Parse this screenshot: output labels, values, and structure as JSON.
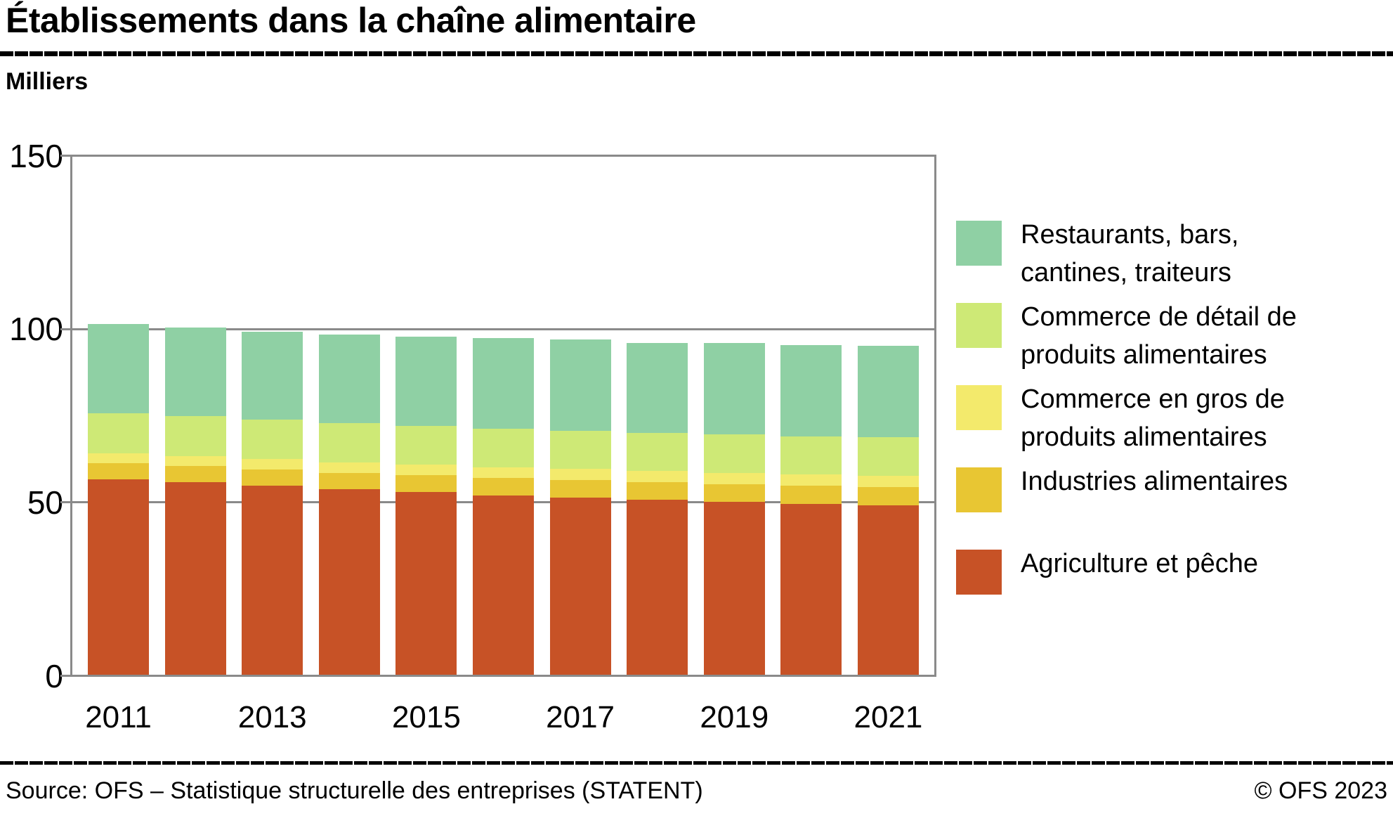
{
  "header": {
    "title": "Établissements dans la chaîne alimentaire"
  },
  "chart": {
    "unit_label": "Milliers"
  },
  "chart_data": {
    "type": "bar",
    "stacked": true,
    "title": "Établissements dans la chaîne alimentaire",
    "ylabel": "Milliers",
    "xlabel": "",
    "unit": "thousands of establishments",
    "ylim": [
      0,
      150
    ],
    "y_ticks": [
      150,
      100,
      50,
      0
    ],
    "grid": "horizontal",
    "legend_position": "right",
    "categories": [
      2011,
      2012,
      2013,
      2014,
      2015,
      2016,
      2017,
      2018,
      2019,
      2020,
      2021
    ],
    "x_tick_labels": [
      "2011",
      "2013",
      "2015",
      "2017",
      "2019",
      "2021"
    ],
    "series": [
      {
        "name": "Agriculture et pêche",
        "color": "#c75226",
        "values": [
          56.6,
          55.8,
          54.7,
          53.7,
          52.9,
          52.0,
          51.3,
          50.7,
          50.0,
          49.4,
          49.0
        ]
      },
      {
        "name": "Industries alimentaires",
        "color": "#e8c633",
        "values": [
          4.6,
          4.7,
          4.7,
          4.8,
          4.9,
          5.0,
          5.1,
          5.1,
          5.2,
          5.3,
          5.3
        ]
      },
      {
        "name": "Commerce en gros de produits alimentaires",
        "color": "#f3ea6c",
        "values": [
          2.9,
          2.9,
          3.0,
          3.0,
          3.1,
          3.1,
          3.2,
          3.2,
          3.3,
          3.3,
          3.4
        ]
      },
      {
        "name": "Commerce de détail de produits alimentaires",
        "color": "#cee976",
        "values": [
          11.7,
          11.5,
          11.4,
          11.3,
          11.2,
          11.2,
          11.1,
          11.0,
          11.1,
          11.0,
          11.1
        ]
      },
      {
        "name": "Restaurants, bars, cantines, traiteurs",
        "color": "#8fd0a4",
        "values": [
          25.7,
          25.7,
          25.5,
          25.8,
          25.9,
          26.2,
          26.3,
          26.0,
          26.5,
          26.5,
          26.5
        ]
      }
    ]
  },
  "legend": {
    "items": [
      {
        "color": "#8fd0a4",
        "lines": [
          "Restaurants, bars,",
          "cantines, traiteurs"
        ]
      },
      {
        "color": "#cee976",
        "lines": [
          "Commerce de détail de",
          "produits alimentaires"
        ]
      },
      {
        "color": "#f3ea6c",
        "lines": [
          "Commerce en gros de",
          "produits alimentaires"
        ]
      },
      {
        "color": "#e8c633",
        "lines": [
          "Industries alimentaires"
        ]
      },
      {
        "color": "#c75226",
        "lines": [
          "Agriculture et pêche"
        ]
      }
    ]
  },
  "footer": {
    "source": "Source: OFS – Statistique structurelle des entreprises (STATENT)",
    "copyright": "© OFS 2023"
  }
}
